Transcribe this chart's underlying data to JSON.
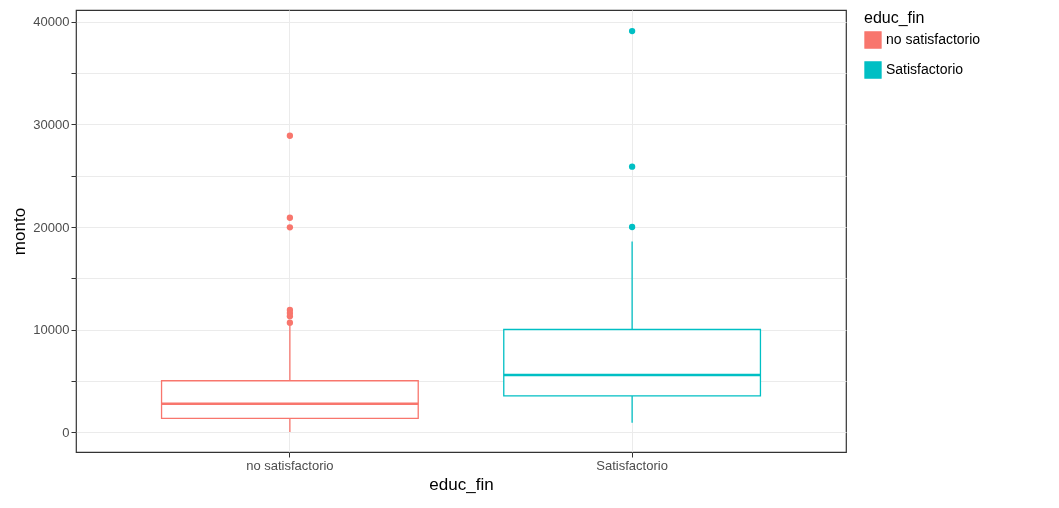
{
  "chart_data": {
    "type": "box",
    "xlabel": "educ_fin",
    "ylabel": "monto",
    "legend_title": "educ_fin",
    "categories": [
      "no satisfactorio",
      "Satisfactorio"
    ],
    "series": [
      {
        "name": "no satisfactorio",
        "color": "#f8766d",
        "boxes": [
          {
            "low": 0,
            "q1": 1330,
            "median": 2760,
            "q3": 5000,
            "high": 10400,
            "outliers": [
              10660,
              11300,
              11600,
              11900,
              19970,
              20900,
              28900
            ]
          },
          null
        ]
      },
      {
        "name": "Satisfactorio",
        "color": "#00bfc4",
        "boxes": [
          null,
          {
            "low": 900,
            "q1": 3520,
            "median": 5560,
            "q3": 10000,
            "high": 18590,
            "outliers": [
              20000,
              25890,
              39110
            ]
          }
        ]
      }
    ],
    "ylim": [
      -1950,
      41170
    ],
    "yticks": [
      0,
      {
        "value": 5000,
        "label": null
      },
      10000,
      {
        "value": 15000,
        "label": null
      },
      20000,
      {
        "value": 25000,
        "label": null
      },
      30000,
      {
        "value": 35000,
        "label": null
      },
      40000
    ],
    "grid": true,
    "legend": "right"
  }
}
